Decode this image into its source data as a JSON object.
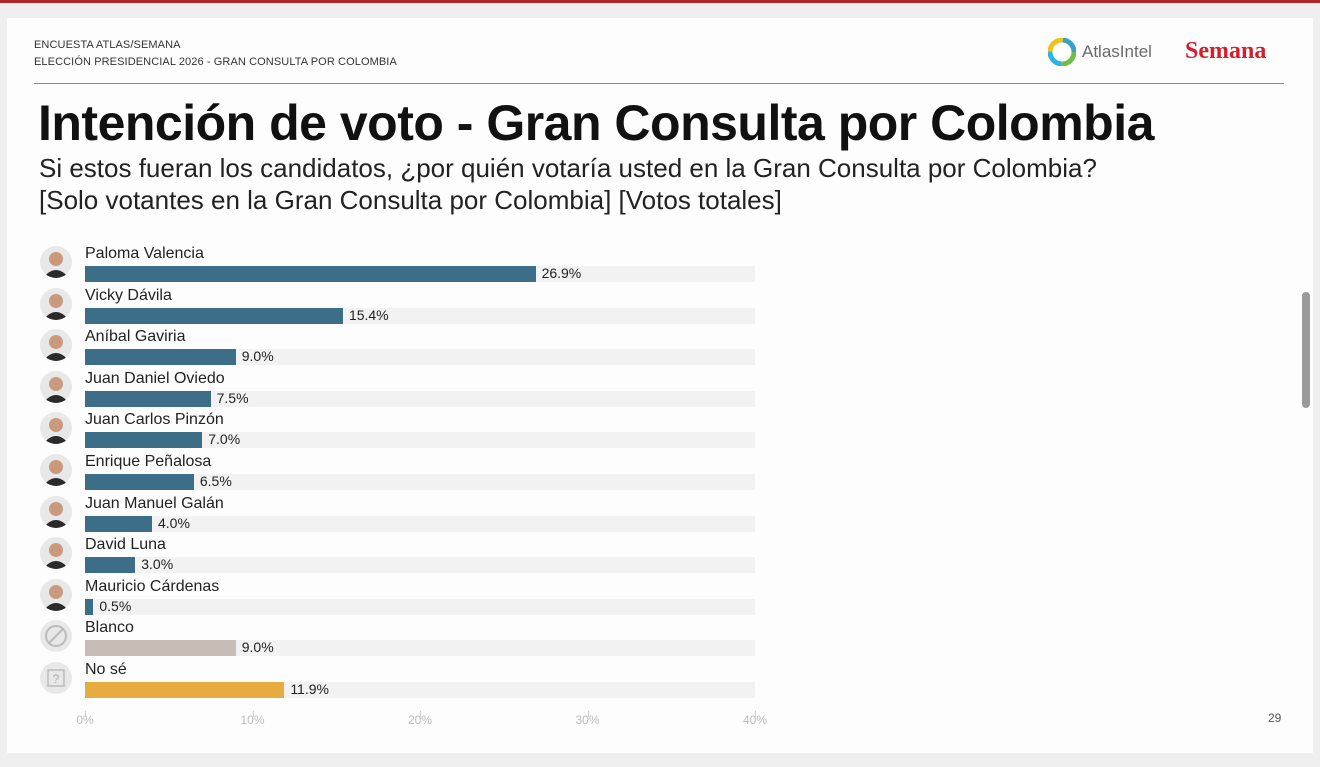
{
  "header": {
    "line1": "ENCUESTA ATLAS/SEMANA",
    "line2": "ELECCIÓN PRESIDENCIAL 2026 - GRAN CONSULTA POR COLOMBIA",
    "logo_atlas": "AtlasIntel",
    "logo_semana": "Semana"
  },
  "page_number": "29",
  "colors": {
    "candidate": "#3d6e87",
    "blank": "#c8bcb6",
    "unsure": "#e6ac3f",
    "track": "#f2f2f2",
    "brand_red": "#d4202c"
  },
  "chart_data": {
    "type": "bar",
    "orientation": "horizontal",
    "title": "Intención de voto - Gran Consulta por Colombia",
    "subtitle1": "Si estos fueran los candidatos, ¿por quién votaría usted en la Gran Consulta por Colombia?",
    "subtitle2": "[Solo votantes en la Gran Consulta por Colombia] [Votos totales]",
    "categories": [
      "Paloma Valencia",
      "Vicky Dávila",
      "Aníbal Gaviria",
      "Juan Daniel Oviedo",
      "Juan Carlos Pinzón",
      "Enrique Peñalosa",
      "Juan Manuel Galán",
      "David Luna",
      "Mauricio Cárdenas",
      "Blanco",
      "No sé"
    ],
    "values": [
      26.9,
      15.4,
      9.0,
      7.5,
      7.0,
      6.5,
      4.0,
      3.0,
      0.5,
      9.0,
      11.9
    ],
    "labels": [
      "26.9%",
      "15.4%",
      "9.0%",
      "7.5%",
      "7.0%",
      "6.5%",
      "4.0%",
      "3.0%",
      "0.5%",
      "9.0%",
      "11.9%"
    ],
    "kinds": [
      "candidate",
      "candidate",
      "candidate",
      "candidate",
      "candidate",
      "candidate",
      "candidate",
      "candidate",
      "candidate",
      "blank",
      "unsure"
    ],
    "icons": [
      "avatar",
      "avatar",
      "avatar",
      "avatar",
      "avatar",
      "avatar",
      "avatar",
      "avatar",
      "avatar",
      "prohibited-icon",
      "question-icon"
    ],
    "xlim": [
      0,
      40
    ],
    "xticks": [
      "0%",
      "10%",
      "20%",
      "30%",
      "40%"
    ],
    "grid": false
  }
}
